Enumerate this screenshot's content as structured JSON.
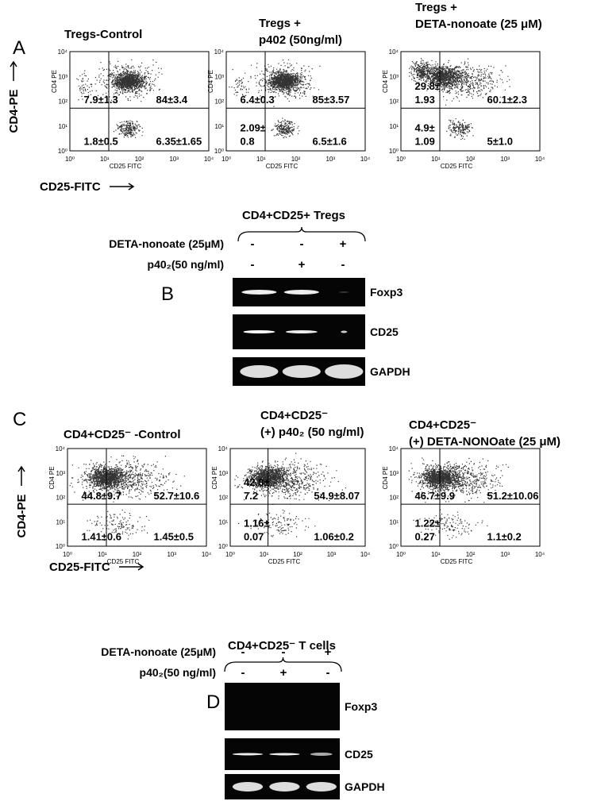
{
  "tick_labels": [
    "10⁰",
    "10¹",
    "10²",
    "10³",
    "10⁴"
  ],
  "panel_a": {
    "letter": "A",
    "y_label": "CD4-PE",
    "x_label": "CD25-FITC",
    "plots": [
      {
        "title": [
          "Tregs-Control"
        ],
        "y_axis": "CD4 PE",
        "x_axis": "CD25 FITC",
        "upper_left": [
          "7.9±1.3"
        ],
        "upper_right": [
          "84±3.4"
        ],
        "lower_left": [
          "1.8±0.5"
        ],
        "lower_right": [
          "6.35±1.65"
        ]
      },
      {
        "title": [
          "Tregs +",
          "p402 (50ng/ml)"
        ],
        "y_axis": "CD4 PE",
        "x_axis": "CD25 FITC",
        "upper_left": [
          "6.4±0.3"
        ],
        "upper_right": [
          "85±3.57"
        ],
        "lower_left": [
          "2.09±",
          "0.8"
        ],
        "lower_right": [
          "6.5±1.6"
        ]
      },
      {
        "title": [
          "Tregs +",
          "DETA-nonoate (25 μM)"
        ],
        "y_axis": "CD4 PE",
        "x_axis": "CD25 FITC",
        "upper_left": [
          "29.8±",
          "1.93"
        ],
        "upper_right": [
          "60.1±2.3"
        ],
        "lower_left": [
          "4.9±",
          "1.09"
        ],
        "lower_right": [
          "5±1.0"
        ]
      }
    ]
  },
  "panel_b": {
    "letter": "B",
    "group": "CD4+CD25+ Tregs",
    "conditions": [
      {
        "label": "DETA-nonoate (25µM)",
        "lanes": [
          "-",
          "-",
          "+"
        ]
      },
      {
        "label": "p40₂(50 ng/ml)",
        "lanes": [
          "-",
          "+",
          "-"
        ]
      }
    ],
    "genes": [
      "Foxp3",
      "CD25",
      "GAPDH"
    ]
  },
  "panel_c": {
    "letter": "C",
    "y_label": "CD4-PE",
    "x_label": "CD25-FITC",
    "plots": [
      {
        "title": [
          "CD4+CD25⁻ -Control"
        ],
        "y_axis": "CD4 PE",
        "x_axis": "CD25 FITC",
        "upper_left": [
          "44.8±9.7"
        ],
        "upper_right": [
          "52.7±10.6"
        ],
        "lower_left": [
          "1.41±0.6"
        ],
        "lower_right": [
          "1.45±0.5"
        ]
      },
      {
        "title": [
          "CD4+CD25⁻",
          "(+) p40₂ (50 ng/ml)"
        ],
        "y_axis": "CD4 PE",
        "x_axis": "CD25 FITC",
        "upper_left": [
          "42.8±",
          "7.2"
        ],
        "upper_right": [
          "54.9±8.07"
        ],
        "lower_left": [
          "1.16±",
          "0.07"
        ],
        "lower_right": [
          "1.06±0.2"
        ]
      },
      {
        "title": [
          "CD4+CD25⁻",
          "(+) DETA-NONOate (25 μM)"
        ],
        "y_axis": "CD4 PE",
        "x_axis": "CD25 FITC",
        "upper_left": [
          "46.7±9.9"
        ],
        "upper_right": [
          "51.2±10.06"
        ],
        "lower_left": [
          "1.22±",
          "0.27"
        ],
        "lower_right": [
          "1.1±0.2"
        ]
      }
    ]
  },
  "panel_d": {
    "letter": "D",
    "group": "CD4+CD25⁻ T cells",
    "conditions": [
      {
        "label": "DETA-nonoate (25µM)",
        "lanes": [
          "-",
          "-",
          "+"
        ]
      },
      {
        "label": "p40₂(50 ng/ml)",
        "lanes": [
          "-",
          "+",
          "-"
        ]
      }
    ],
    "genes": [
      "Foxp3",
      "CD25",
      "GAPDH"
    ]
  }
}
